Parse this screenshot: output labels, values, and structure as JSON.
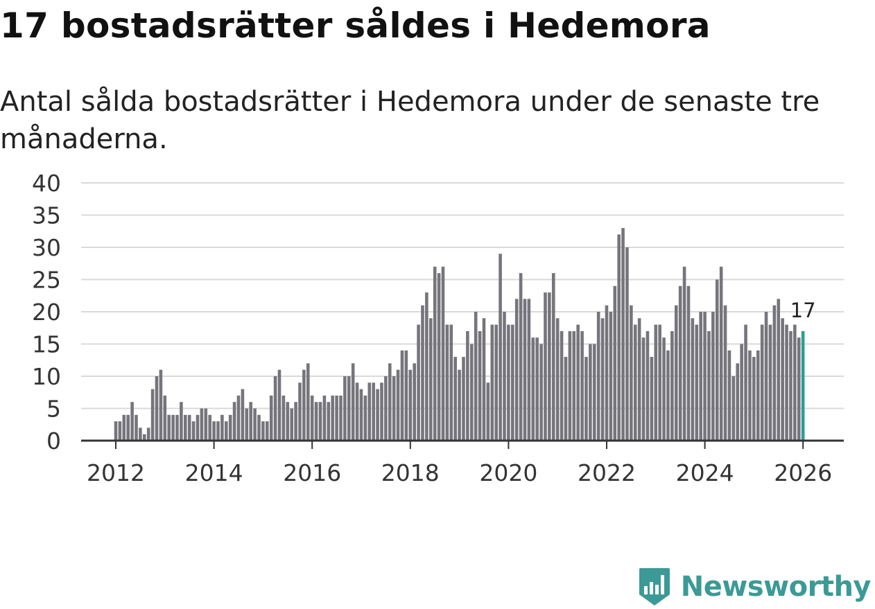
{
  "page": {
    "title": "17 bostadsrätter såldes i Hedemora",
    "subtitle": "Antal sålda bostadsrätter i Hedemora under de senaste tre månaderna."
  },
  "brand": {
    "name": "Newsworthy",
    "color": "#3b9a96",
    "icon": "bar-chart-shield-icon"
  },
  "colors": {
    "bar": "#76757c",
    "highlight": "#2a9d99",
    "grid": "#d9d9d9",
    "axis": "#333333"
  },
  "chart_data": {
    "type": "bar",
    "title": "17 bostadsrätter såldes i Hedemora",
    "subtitle": "Antal sålda bostadsrätter i Hedemora under de senaste tre månaderna.",
    "xlabel": "",
    "ylabel": "",
    "ylim": [
      0,
      40
    ],
    "yticks": [
      "0",
      "5",
      "10",
      "15",
      "20",
      "25",
      "30",
      "35",
      "40"
    ],
    "xlim": [
      2011.0,
      2026.7
    ],
    "xticks": [
      {
        "value": 2012,
        "label": "2012"
      },
      {
        "value": 2014,
        "label": "2014"
      },
      {
        "value": 2016,
        "label": "2016"
      },
      {
        "value": 2018,
        "label": "2018"
      },
      {
        "value": 2020,
        "label": "2020"
      },
      {
        "value": 2022,
        "label": "2022"
      },
      {
        "value": 2024,
        "label": "2024"
      },
      {
        "value": 2026,
        "label": "2026"
      }
    ],
    "grid": true,
    "start": 2012.0,
    "step": 0.08333,
    "values": [
      3,
      3,
      4,
      4,
      6,
      4,
      2,
      1,
      2,
      8,
      10,
      11,
      7,
      4,
      4,
      4,
      6,
      4,
      4,
      3,
      4,
      5,
      5,
      4,
      3,
      3,
      4,
      3,
      4,
      6,
      7,
      8,
      5,
      6,
      5,
      4,
      3,
      3,
      7,
      10,
      11,
      7,
      6,
      5,
      6,
      9,
      11,
      12,
      7,
      6,
      6,
      7,
      6,
      7,
      7,
      7,
      10,
      10,
      12,
      9,
      8,
      7,
      9,
      9,
      8,
      9,
      10,
      12,
      10,
      11,
      14,
      14,
      11,
      12,
      18,
      21,
      23,
      19,
      27,
      26,
      27,
      18,
      18,
      13,
      11,
      13,
      17,
      15,
      20,
      17,
      19,
      9,
      18,
      18,
      29,
      20,
      18,
      18,
      22,
      26,
      22,
      22,
      16,
      16,
      15,
      23,
      23,
      26,
      19,
      17,
      13,
      17,
      17,
      18,
      17,
      13,
      15,
      15,
      20,
      19,
      21,
      20,
      24,
      32,
      33,
      30,
      21,
      18,
      19,
      16,
      17,
      13,
      18,
      18,
      16,
      14,
      17,
      21,
      24,
      27,
      24,
      19,
      18,
      20,
      20,
      17,
      20,
      25,
      27,
      21,
      14,
      10,
      12,
      15,
      18,
      14,
      13,
      14,
      18,
      20,
      18,
      21,
      22,
      19,
      18,
      17,
      18,
      16,
      17
    ],
    "highlight": {
      "index": 168,
      "value": 17,
      "label": "17"
    }
  }
}
